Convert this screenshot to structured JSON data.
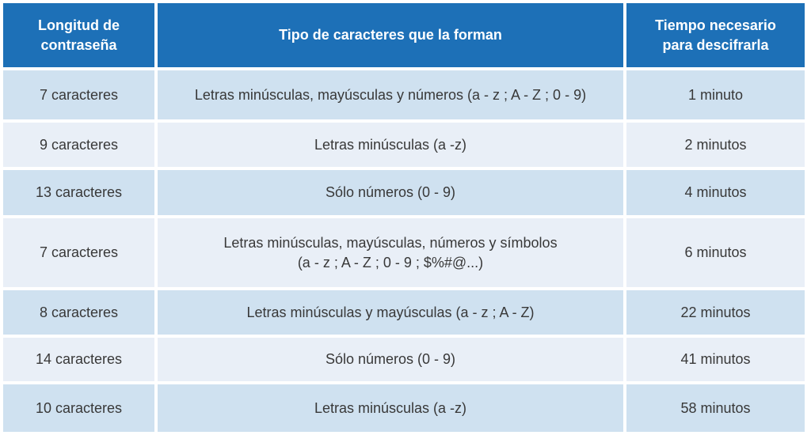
{
  "colors": {
    "header_bg": "#1d70b7",
    "header_text": "#ffffff",
    "row_odd_bg": "#cfe1f0",
    "row_even_bg": "#e9eff7",
    "cell_text": "#383838",
    "separator": "#ffffff"
  },
  "chart_data": {
    "type": "table",
    "title": "",
    "columns": [
      "Longitud de\ncontraseña",
      "Tipo de caracteres que la forman",
      "Tiempo necesario\npara descifrarla"
    ],
    "rows": [
      [
        "7 caracteres",
        "Letras minúsculas, mayúsculas y números (a - z ; A - Z ; 0 - 9)",
        "1 minuto"
      ],
      [
        "9 caracteres",
        "Letras minúsculas (a -z)",
        "2 minutos"
      ],
      [
        "13 caracteres",
        "Sólo números (0 - 9)",
        "4 minutos"
      ],
      [
        "7 caracteres",
        "Letras minúsculas, mayúsculas, números y símbolos\n(a - z ; A - Z ; 0 - 9 ; $%#@...)",
        "6 minutos"
      ],
      [
        "8 caracteres",
        "Letras minúsculas y mayúsculas (a - z ; A - Z)",
        "22 minutos"
      ],
      [
        "14 caracteres",
        "Sólo números (0 - 9)",
        "41 minutos"
      ],
      [
        "10 caracteres",
        "Letras minúsculas (a -z)",
        "58 minutos"
      ]
    ]
  }
}
